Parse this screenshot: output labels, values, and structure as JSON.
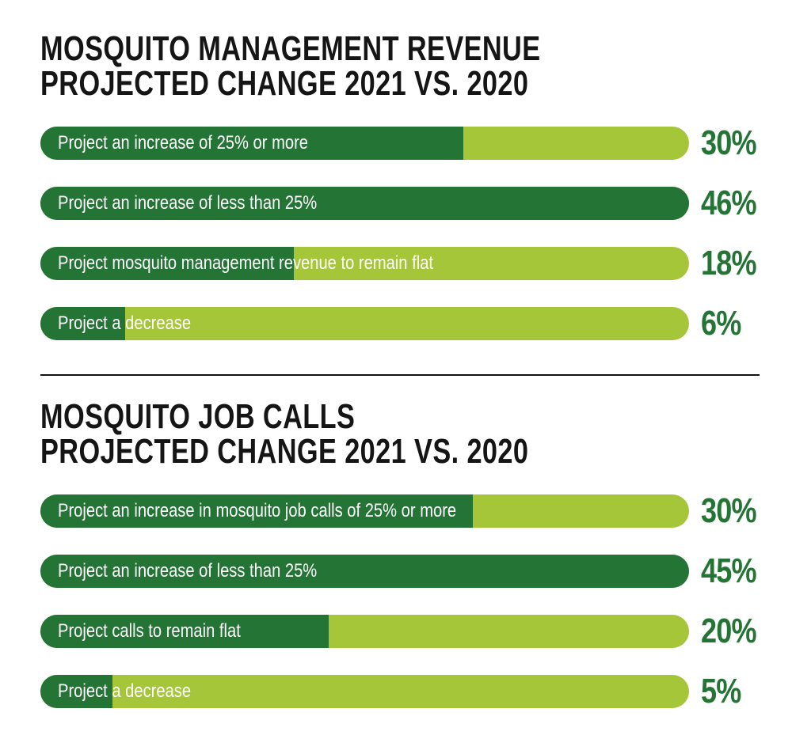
{
  "chart_data": [
    {
      "type": "bar",
      "orientation": "horizontal",
      "title": "MOSQUITO MANAGEMENT REVENUE PROJECTED CHANGE 2021 VS. 2020",
      "title_lines": [
        "MOSQUITO MANAGEMENT REVENUE",
        "PROJECTED CHANGE 2021 VS. 2020"
      ],
      "categories": [
        "Project an increase of 25% or more",
        "Project an increase of less than 25%",
        "Project mosquito management revenue to remain flat",
        "Project a decrease"
      ],
      "values": [
        30,
        46,
        18,
        6
      ],
      "value_labels": [
        "30%",
        "46%",
        "18%",
        "6%"
      ],
      "unit": "%",
      "xlim": [
        0,
        46
      ],
      "xlabel": "",
      "ylabel": "",
      "grid": false,
      "legend": "none"
    },
    {
      "type": "bar",
      "orientation": "horizontal",
      "title": "MOSQUITO JOB CALLS PROJECTED CHANGE 2021 VS. 2020",
      "title_lines": [
        "MOSQUITO JOB CALLS",
        "PROJECTED CHANGE 2021 VS. 2020"
      ],
      "categories": [
        "Project an increase in mosquito job calls of 25% or more",
        "Project an increase of less than 25%",
        "Project calls to remain flat",
        "Project a decrease"
      ],
      "values": [
        30,
        45,
        20,
        5
      ],
      "value_labels": [
        "30%",
        "45%",
        "20%",
        "5%"
      ],
      "unit": "%",
      "xlim": [
        0,
        45
      ],
      "xlabel": "",
      "ylabel": "",
      "grid": false,
      "legend": "none"
    }
  ],
  "colors": {
    "fill": "#237435",
    "track": "#a6c639",
    "value_text": "#237435",
    "title_text": "#151515",
    "divider": "#111111"
  }
}
